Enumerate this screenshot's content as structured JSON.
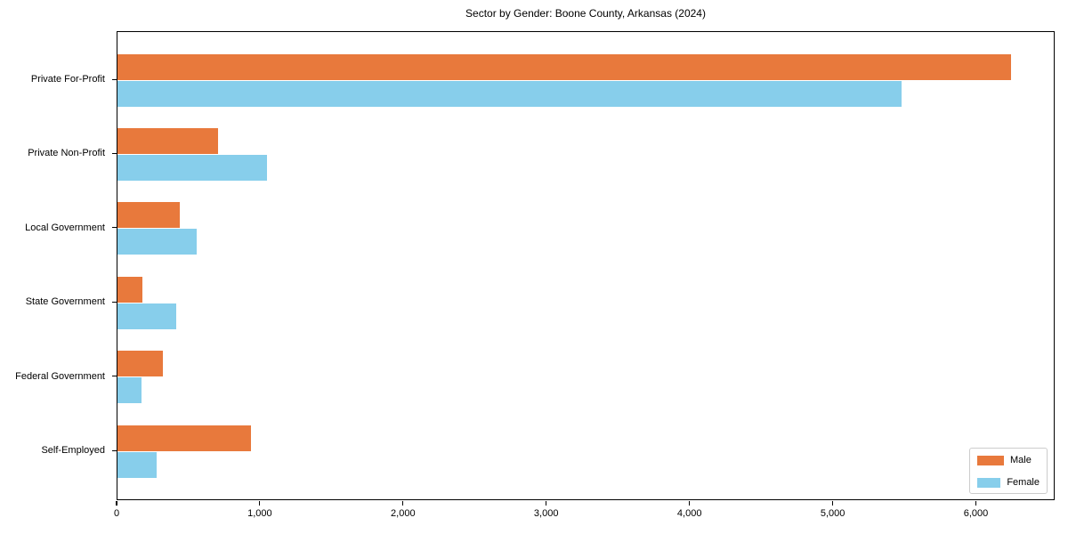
{
  "title": "Sector by Gender: Boone County, Arkansas (2024)",
  "chart_data": {
    "type": "bar",
    "orientation": "horizontal",
    "title": "Sector by Gender: Boone County, Arkansas (2024)",
    "categories": [
      "Private For-Profit",
      "Private Non-Profit",
      "Local Government",
      "State Government",
      "Federal Government",
      "Self-Employed"
    ],
    "series": [
      {
        "name": "Male",
        "color": "#e8793c",
        "values": [
          6240,
          700,
          435,
          175,
          315,
          930
        ]
      },
      {
        "name": "Female",
        "color": "#87ceeb",
        "values": [
          5475,
          1045,
          555,
          410,
          170,
          275
        ]
      }
    ],
    "xlabel": "",
    "ylabel": "",
    "xlim": [
      0,
      6550
    ],
    "x_ticks": [
      0,
      1000,
      2000,
      3000,
      4000,
      5000,
      6000
    ],
    "x_tick_labels": [
      "0",
      "1,000",
      "2,000",
      "3,000",
      "4,000",
      "5,000",
      "6,000"
    ],
    "grid": false,
    "legend_position": "lower right",
    "frame_color": "#000000",
    "background_color": "#ffffff"
  }
}
